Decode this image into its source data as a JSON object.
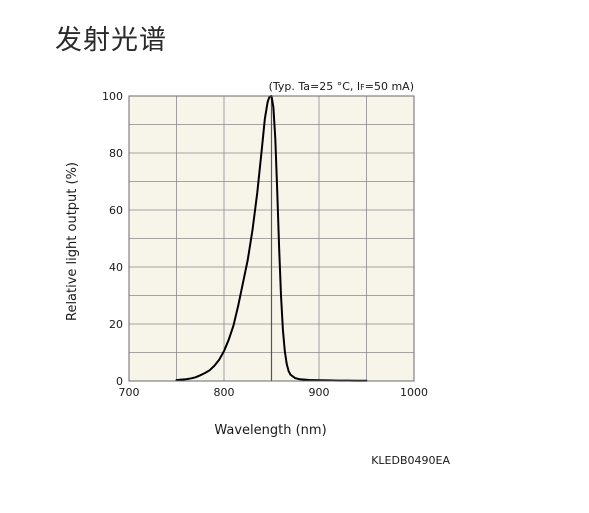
{
  "page": {
    "title": "发射光谱",
    "document_code": "KLEDB0490EA"
  },
  "chart_data": {
    "type": "line",
    "title": "",
    "conditions_prefix": "(Typ. Ta=25 °C, I",
    "conditions_sub": "F",
    "conditions_suffix": "=50 mA)",
    "xlabel": "Wavelength (nm)",
    "ylabel": "Relative light output (%)",
    "xlim": [
      700,
      1000
    ],
    "ylim": [
      0,
      100
    ],
    "x_ticks": [
      700,
      800,
      900,
      1000
    ],
    "y_ticks": [
      0,
      20,
      40,
      60,
      80,
      100
    ],
    "x_minor_step": 50,
    "y_minor_step": 10,
    "grid": true,
    "marker_line_x": 850,
    "colors": {
      "plot_background": "#f7f4ea",
      "grid": "#8a8a8a",
      "frame": "#6a6a6a",
      "series": "#000000"
    },
    "series": [
      {
        "name": "",
        "x": [
          750,
          755,
          760,
          765,
          770,
          775,
          780,
          785,
          790,
          795,
          800,
          805,
          810,
          815,
          820,
          825,
          830,
          835,
          840,
          843,
          846,
          848,
          850,
          852,
          854,
          856,
          858,
          860,
          862,
          864,
          866,
          868,
          870,
          875,
          880,
          890,
          900,
          910,
          920,
          930,
          940,
          950
        ],
        "values": [
          0.3,
          0.5,
          0.6,
          0.9,
          1.3,
          2.0,
          2.8,
          3.8,
          5.4,
          7.5,
          10.5,
          14.5,
          19.5,
          26.5,
          34.5,
          42.5,
          53.0,
          66.0,
          82.0,
          92.0,
          98.0,
          99.8,
          100.0,
          96.0,
          85.0,
          67.0,
          47.0,
          30.0,
          18.0,
          10.5,
          6.0,
          3.5,
          2.2,
          1.0,
          0.6,
          0.35,
          0.25,
          0.2,
          0.15,
          0.12,
          0.1,
          0.1
        ]
      }
    ]
  }
}
